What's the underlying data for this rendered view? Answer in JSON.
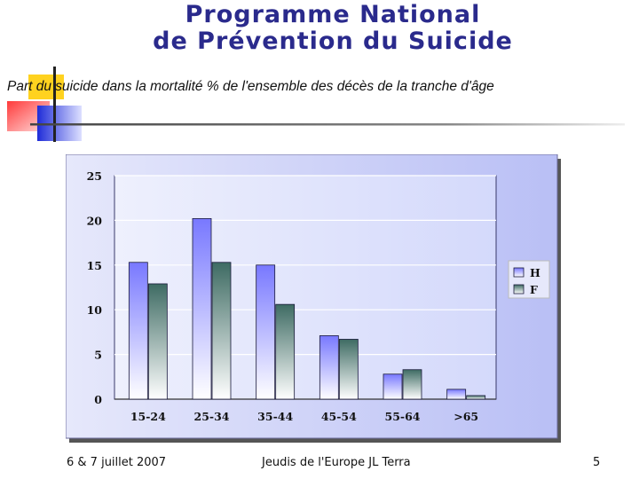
{
  "header": {
    "title_line1": "Programme National",
    "title_line2": "de Prévention du Suicide"
  },
  "subtitle": "Part du suicide dans la mortalité  % de l'ensemble des décès de la tranche d'âge",
  "chart_data": {
    "type": "bar",
    "categories": [
      "15-24",
      "25-34",
      "35-44",
      "45-54",
      "55-64",
      ">65"
    ],
    "series": [
      {
        "name": "H",
        "values": [
          15.3,
          20.2,
          15.0,
          7.1,
          2.8,
          1.1
        ]
      },
      {
        "name": "F",
        "values": [
          12.9,
          15.3,
          10.6,
          6.7,
          3.3,
          0.4
        ]
      }
    ],
    "yticks": [
      0,
      5,
      10,
      15,
      20,
      25
    ],
    "ylim": [
      0,
      25
    ],
    "legend_position": "right",
    "grid": true,
    "colors": {
      "H": "#8080ff",
      "F": "#3e6b63",
      "plot_bg": "#dfe3fc",
      "frame_bg": "#c8cdf7"
    }
  },
  "footer": {
    "date": "6 & 7 juillet 2007",
    "event": "Jeudis de l'Europe JL Terra",
    "page": "5"
  }
}
